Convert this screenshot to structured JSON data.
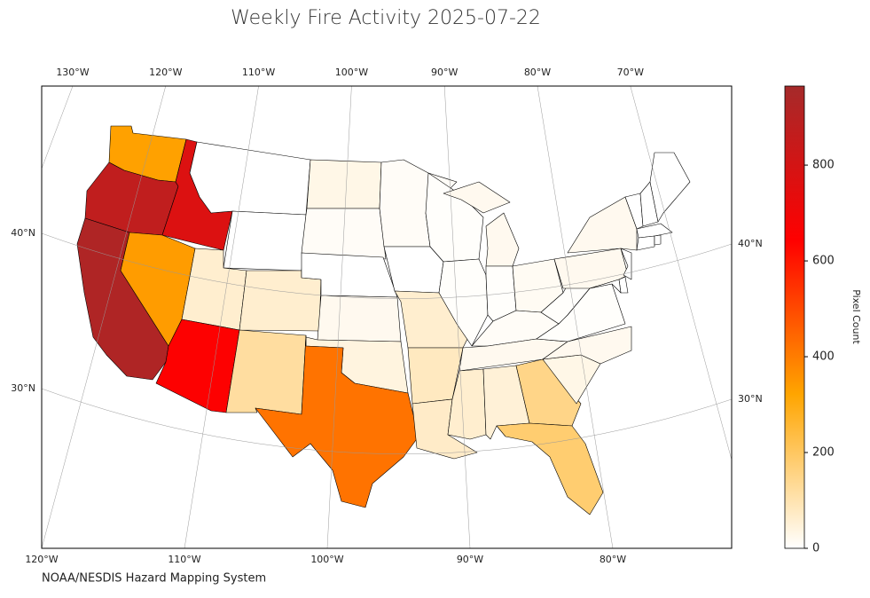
{
  "chart_data": {
    "type": "choropleth",
    "title": "Weekly Fire Activity 2025-07-22",
    "source": "NOAA/NESDIS Hazard Mapping System",
    "colorbar_label": "Pixel Count",
    "colorbar_lim": [
      0,
      965
    ],
    "colorbar_ticks": [
      0,
      200,
      400,
      600,
      800
    ],
    "colormap": [
      "#ffffff",
      "#ffa500",
      "#ff0000",
      "#a52a2a"
    ],
    "values": [
      330,
      870,
      770,
      0,
      0,
      930,
      340,
      60,
      650,
      60,
      120,
      30,
      10,
      0,
      20,
      40,
      420,
      10,
      0,
      60,
      80,
      70,
      5,
      5,
      20,
      20,
      5,
      15,
      10,
      20,
      60,
      50,
      150,
      180,
      30,
      20,
      5,
      5,
      20,
      20,
      0,
      0,
      0,
      0,
      0,
      0,
      0,
      0,
      0
    ],
    "top_lon_ticks": [
      {
        "value": -130,
        "label": "130°W"
      },
      {
        "value": -120,
        "label": "120°W"
      },
      {
        "value": -110,
        "label": "110°W"
      },
      {
        "value": -100,
        "label": "100°W"
      },
      {
        "value": -90,
        "label": "90°W"
      },
      {
        "value": -80,
        "label": "80°W"
      },
      {
        "value": -70,
        "label": "70°W"
      }
    ],
    "bottom_lon_ticks": [
      {
        "value": -120,
        "label": "120°W"
      },
      {
        "value": -110,
        "label": "110°W"
      },
      {
        "value": -100,
        "label": "100°W"
      },
      {
        "value": -90,
        "label": "90°W"
      },
      {
        "value": -80,
        "label": "80°W"
      }
    ],
    "left_lat_ticks": [
      {
        "value": 40,
        "label": "40°N"
      },
      {
        "value": 30,
        "label": "30°N"
      }
    ],
    "right_lat_ticks": [
      {
        "value": 40,
        "label": "40°N"
      },
      {
        "value": 30,
        "label": "30°N"
      }
    ]
  }
}
